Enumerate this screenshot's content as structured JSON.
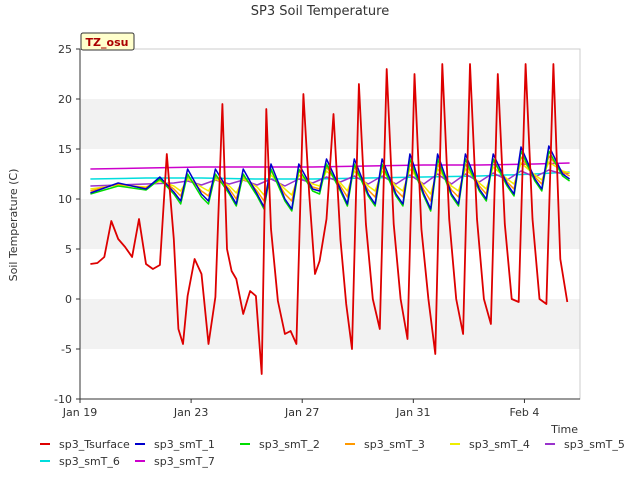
{
  "chart_data": {
    "type": "line",
    "title": "SP3 Soil Temperature",
    "xlabel": "Time",
    "ylabel": "Soil Temperature (C)",
    "site_label": "TZ_osu",
    "xlim": [
      "2020-01-19T00:00",
      "2020-02-06T00:00"
    ],
    "ylim": [
      -10,
      25
    ],
    "x_ticks": [
      {
        "label": "Jan 19",
        "date": "2020-01-19"
      },
      {
        "label": "Jan 23",
        "date": "2020-01-23"
      },
      {
        "label": "Jan 27",
        "date": "2020-01-27"
      },
      {
        "label": "Jan 31",
        "date": "2020-01-31"
      },
      {
        "label": "Feb 4",
        "date": "2020-02-04"
      }
    ],
    "y_ticks": [
      -10,
      -5,
      0,
      5,
      10,
      15,
      20,
      25
    ],
    "grid": "horizontal bands",
    "legend_position": "bottom",
    "series": [
      {
        "name": "sp3_Tsurface",
        "color": "#dd0000",
        "x": [
          "2020-01-19T09:00",
          "2020-01-19T15:00",
          "2020-01-19T21:00",
          "2020-01-20T03:00",
          "2020-01-20T09:00",
          "2020-01-20T15:00",
          "2020-01-20T21:00",
          "2020-01-21T03:00",
          "2020-01-21T09:00",
          "2020-01-21T15:00",
          "2020-01-21T21:00",
          "2020-01-22T03:00",
          "2020-01-22T09:00",
          "2020-01-22T13:00",
          "2020-01-22T17:00",
          "2020-01-22T21:00",
          "2020-01-23T03:00",
          "2020-01-23T09:00",
          "2020-01-23T15:00",
          "2020-01-23T21:00",
          "2020-01-24T03:00",
          "2020-01-24T07:00",
          "2020-01-24T11:00",
          "2020-01-24T15:00",
          "2020-01-24T21:00",
          "2020-01-25T03:00",
          "2020-01-25T08:00",
          "2020-01-25T13:00",
          "2020-01-25T17:00",
          "2020-01-25T21:00",
          "2020-01-26T03:00",
          "2020-01-26T09:00",
          "2020-01-26T14:00",
          "2020-01-26T19:00",
          "2020-01-27T01:00",
          "2020-01-27T06:00",
          "2020-01-27T11:00",
          "2020-01-27T15:00",
          "2020-01-27T21:00",
          "2020-01-28T03:00",
          "2020-01-28T09:00",
          "2020-01-28T14:00",
          "2020-01-28T19:00",
          "2020-01-29T01:00",
          "2020-01-29T07:00",
          "2020-01-29T13:00",
          "2020-01-29T19:00",
          "2020-01-30T01:00",
          "2020-01-30T07:00",
          "2020-01-30T13:00",
          "2020-01-30T19:00",
          "2020-01-31T01:00",
          "2020-01-31T07:00",
          "2020-01-31T13:00",
          "2020-01-31T19:00",
          "2020-02-01T01:00",
          "2020-02-01T07:00",
          "2020-02-01T13:00",
          "2020-02-01T19:00",
          "2020-02-02T01:00",
          "2020-02-02T07:00",
          "2020-02-02T13:00",
          "2020-02-02T19:00",
          "2020-02-03T01:00",
          "2020-02-03T07:00",
          "2020-02-03T13:00",
          "2020-02-03T19:00",
          "2020-02-04T01:00",
          "2020-02-04T07:00",
          "2020-02-04T13:00",
          "2020-02-04T19:00",
          "2020-02-05T01:00",
          "2020-02-05T07:00",
          "2020-02-05T13:00"
        ],
        "values": [
          3.5,
          3.6,
          4.2,
          7.8,
          6.0,
          5.2,
          4.2,
          8.0,
          3.5,
          3.0,
          3.4,
          14.5,
          6.0,
          -3.0,
          -4.5,
          0.3,
          4.0,
          2.5,
          -4.5,
          0.2,
          19.5,
          5.0,
          2.8,
          2.0,
          -1.5,
          0.8,
          0.3,
          -7.5,
          19.0,
          7.0,
          -0.2,
          -3.5,
          -3.2,
          -4.5,
          20.5,
          10.5,
          2.5,
          3.8,
          8.0,
          18.5,
          6.0,
          -0.5,
          -5.0,
          21.5,
          7.5,
          0.0,
          -3.0,
          23.0,
          7.5,
          0.0,
          -4.0,
          22.5,
          7.0,
          0.0,
          -5.5,
          23.5,
          8.0,
          0.0,
          -3.5,
          23.5,
          8.0,
          0.0,
          -2.5,
          22.5,
          7.5,
          0.0,
          -0.3,
          23.5,
          8.0,
          0.0,
          -0.5,
          23.5,
          4.0,
          -0.3
        ]
      },
      {
        "name": "sp3_smT_1",
        "color": "#0000cc",
        "x": [
          "2020-01-19T09:00",
          "2020-01-20T09:00",
          "2020-01-21T09:00",
          "2020-01-21T21:00",
          "2020-01-22T09:00",
          "2020-01-22T15:00",
          "2020-01-22T21:00",
          "2020-01-23T09:00",
          "2020-01-23T15:00",
          "2020-01-23T21:00",
          "2020-01-24T09:00",
          "2020-01-24T15:00",
          "2020-01-24T21:00",
          "2020-01-25T09:00",
          "2020-01-25T15:00",
          "2020-01-25T21:00",
          "2020-01-26T09:00",
          "2020-01-26T15:00",
          "2020-01-26T21:00",
          "2020-01-27T09:00",
          "2020-01-27T15:00",
          "2020-01-27T21:00",
          "2020-01-28T09:00",
          "2020-01-28T15:00",
          "2020-01-28T21:00",
          "2020-01-29T09:00",
          "2020-01-29T15:00",
          "2020-01-29T21:00",
          "2020-01-30T09:00",
          "2020-01-30T15:00",
          "2020-01-30T21:00",
          "2020-01-31T09:00",
          "2020-01-31T15:00",
          "2020-01-31T21:00",
          "2020-02-01T09:00",
          "2020-02-01T15:00",
          "2020-02-01T21:00",
          "2020-02-02T09:00",
          "2020-02-02T15:00",
          "2020-02-02T21:00",
          "2020-02-03T09:00",
          "2020-02-03T15:00",
          "2020-02-03T21:00",
          "2020-02-04T09:00",
          "2020-02-04T15:00",
          "2020-02-04T21:00",
          "2020-02-05T09:00",
          "2020-02-05T15:00"
        ],
        "values": [
          10.6,
          11.6,
          11.0,
          12.2,
          10.7,
          9.8,
          13.0,
          10.5,
          9.8,
          13.0,
          10.7,
          9.5,
          13.0,
          10.5,
          9.2,
          13.5,
          10.0,
          9.0,
          13.5,
          11.0,
          10.8,
          14.0,
          11.0,
          9.5,
          14.0,
          10.5,
          9.5,
          14.0,
          10.5,
          9.5,
          14.5,
          10.5,
          9.0,
          14.5,
          10.5,
          9.5,
          14.5,
          11.0,
          10.0,
          14.5,
          11.5,
          10.5,
          15.2,
          12.0,
          11.0,
          15.3,
          12.5,
          12.0
        ]
      },
      {
        "name": "sp3_smT_2",
        "color": "#00dd00",
        "x": [
          "2020-01-19T09:00",
          "2020-01-20T09:00",
          "2020-01-21T09:00",
          "2020-01-21T21:00",
          "2020-01-22T09:00",
          "2020-01-22T15:00",
          "2020-01-22T21:00",
          "2020-01-23T09:00",
          "2020-01-23T15:00",
          "2020-01-23T21:00",
          "2020-01-24T09:00",
          "2020-01-24T15:00",
          "2020-01-24T21:00",
          "2020-01-25T09:00",
          "2020-01-25T15:00",
          "2020-01-25T21:00",
          "2020-01-26T09:00",
          "2020-01-26T15:00",
          "2020-01-26T21:00",
          "2020-01-27T09:00",
          "2020-01-27T15:00",
          "2020-01-27T21:00",
          "2020-01-28T09:00",
          "2020-01-28T15:00",
          "2020-01-28T21:00",
          "2020-01-29T09:00",
          "2020-01-29T15:00",
          "2020-01-29T21:00",
          "2020-01-30T09:00",
          "2020-01-30T15:00",
          "2020-01-30T21:00",
          "2020-01-31T09:00",
          "2020-01-31T15:00",
          "2020-01-31T21:00",
          "2020-02-01T09:00",
          "2020-02-01T15:00",
          "2020-02-01T21:00",
          "2020-02-02T09:00",
          "2020-02-02T15:00",
          "2020-02-02T21:00",
          "2020-02-03T09:00",
          "2020-02-03T15:00",
          "2020-02-03T21:00",
          "2020-02-04T09:00",
          "2020-02-04T15:00",
          "2020-02-04T21:00",
          "2020-02-05T09:00",
          "2020-02-05T15:00"
        ],
        "values": [
          10.5,
          11.3,
          10.9,
          12.0,
          10.5,
          9.5,
          12.5,
          10.2,
          9.5,
          12.5,
          10.5,
          9.3,
          12.5,
          10.3,
          9.0,
          13.0,
          9.8,
          8.8,
          13.0,
          10.8,
          10.5,
          13.5,
          10.8,
          9.3,
          13.5,
          10.3,
          9.3,
          13.5,
          10.3,
          9.3,
          14.0,
          10.3,
          8.8,
          14.0,
          10.3,
          9.3,
          14.0,
          10.8,
          9.8,
          14.0,
          11.3,
          10.3,
          14.8,
          11.8,
          10.8,
          14.8,
          12.3,
          11.8
        ]
      },
      {
        "name": "sp3_smT_3",
        "color": "#ff9900",
        "x": [
          "2020-01-19T09:00",
          "2020-01-20T09:00",
          "2020-01-21T09:00",
          "2020-01-21T21:00",
          "2020-01-22T09:00",
          "2020-01-22T15:00",
          "2020-01-22T21:00",
          "2020-01-23T09:00",
          "2020-01-23T15:00",
          "2020-01-23T21:00",
          "2020-01-24T09:00",
          "2020-01-24T15:00",
          "2020-01-24T21:00",
          "2020-01-25T09:00",
          "2020-01-25T15:00",
          "2020-01-25T21:00",
          "2020-01-26T09:00",
          "2020-01-26T15:00",
          "2020-01-26T21:00",
          "2020-01-27T09:00",
          "2020-01-27T15:00",
          "2020-01-27T21:00",
          "2020-01-28T09:00",
          "2020-01-28T15:00",
          "2020-01-28T21:00",
          "2020-01-29T09:00",
          "2020-01-29T15:00",
          "2020-01-29T21:00",
          "2020-01-30T09:00",
          "2020-01-30T15:00",
          "2020-01-30T21:00",
          "2020-01-31T09:00",
          "2020-01-31T15:00",
          "2020-01-31T21:00",
          "2020-02-01T09:00",
          "2020-02-01T15:00",
          "2020-02-01T21:00",
          "2020-02-02T09:00",
          "2020-02-02T15:00",
          "2020-02-02T21:00",
          "2020-02-03T09:00",
          "2020-02-03T15:00",
          "2020-02-03T21:00",
          "2020-02-04T09:00",
          "2020-02-04T15:00",
          "2020-02-04T21:00",
          "2020-02-05T09:00",
          "2020-02-05T15:00"
        ],
        "values": [
          10.8,
          11.5,
          11.1,
          12.0,
          11.0,
          10.3,
          12.3,
          10.8,
          10.3,
          12.3,
          11.0,
          10.0,
          12.3,
          10.8,
          9.8,
          12.8,
          10.5,
          9.8,
          12.8,
          11.2,
          11.0,
          13.2,
          11.3,
          10.2,
          13.2,
          10.9,
          10.2,
          13.2,
          10.9,
          10.2,
          13.5,
          10.9,
          9.8,
          13.5,
          10.9,
          10.2,
          13.5,
          11.3,
          10.5,
          13.8,
          11.7,
          11.0,
          14.2,
          12.2,
          11.5,
          14.3,
          12.7,
          12.3
        ]
      },
      {
        "name": "sp3_smT_4",
        "color": "#eeee00",
        "x": [
          "2020-01-19T09:00",
          "2020-01-20T09:00",
          "2020-01-21T09:00",
          "2020-01-21T21:00",
          "2020-01-22T09:00",
          "2020-01-22T15:00",
          "2020-01-22T21:00",
          "2020-01-23T09:00",
          "2020-01-23T15:00",
          "2020-01-23T21:00",
          "2020-01-24T09:00",
          "2020-01-24T15:00",
          "2020-01-24T21:00",
          "2020-01-25T09:00",
          "2020-01-25T15:00",
          "2020-01-25T21:00",
          "2020-01-26T09:00",
          "2020-01-26T15:00",
          "2020-01-26T21:00",
          "2020-01-27T09:00",
          "2020-01-27T15:00",
          "2020-01-27T21:00",
          "2020-01-28T09:00",
          "2020-01-28T15:00",
          "2020-01-28T21:00",
          "2020-01-29T09:00",
          "2020-01-29T15:00",
          "2020-01-29T21:00",
          "2020-01-30T09:00",
          "2020-01-30T15:00",
          "2020-01-30T21:00",
          "2020-01-31T09:00",
          "2020-01-31T15:00",
          "2020-01-31T21:00",
          "2020-02-01T09:00",
          "2020-02-01T15:00",
          "2020-02-01T21:00",
          "2020-02-02T09:00",
          "2020-02-02T15:00",
          "2020-02-02T21:00",
          "2020-02-03T09:00",
          "2020-02-03T15:00",
          "2020-02-03T21:00",
          "2020-02-04T09:00",
          "2020-02-04T15:00",
          "2020-02-04T21:00",
          "2020-02-05T09:00",
          "2020-02-05T15:00"
        ],
        "values": [
          11.0,
          11.4,
          11.2,
          11.8,
          11.3,
          10.8,
          12.0,
          11.2,
          10.8,
          12.0,
          11.3,
          10.6,
          12.0,
          11.2,
          10.4,
          12.4,
          11.0,
          10.4,
          12.4,
          11.5,
          11.3,
          12.8,
          11.6,
          10.8,
          12.8,
          11.3,
          10.8,
          12.8,
          11.3,
          10.8,
          13.0,
          11.3,
          10.5,
          13.0,
          11.3,
          10.8,
          13.0,
          11.6,
          11.0,
          13.2,
          12.0,
          11.5,
          13.6,
          12.4,
          11.9,
          13.7,
          12.8,
          12.6
        ]
      },
      {
        "name": "sp3_smT_5",
        "color": "#9933cc",
        "x": [
          "2020-01-19T09:00",
          "2020-01-20T09:00",
          "2020-01-21T09:00",
          "2020-01-22T09:00",
          "2020-01-22T21:00",
          "2020-01-23T09:00",
          "2020-01-23T21:00",
          "2020-01-24T09:00",
          "2020-01-24T21:00",
          "2020-01-25T09:00",
          "2020-01-25T21:00",
          "2020-01-26T09:00",
          "2020-01-26T21:00",
          "2020-01-27T09:00",
          "2020-01-27T21:00",
          "2020-01-28T09:00",
          "2020-01-28T21:00",
          "2020-01-29T09:00",
          "2020-01-29T21:00",
          "2020-01-30T09:00",
          "2020-01-30T21:00",
          "2020-01-31T09:00",
          "2020-01-31T21:00",
          "2020-02-01T09:00",
          "2020-02-01T21:00",
          "2020-02-02T09:00",
          "2020-02-02T21:00",
          "2020-02-03T09:00",
          "2020-02-03T21:00",
          "2020-02-04T09:00",
          "2020-02-04T21:00",
          "2020-02-05T09:00",
          "2020-02-05T15:00"
        ],
        "values": [
          11.3,
          11.4,
          11.5,
          11.6,
          11.8,
          11.4,
          11.9,
          11.5,
          11.9,
          11.4,
          12.0,
          11.3,
          12.0,
          11.6,
          12.2,
          11.7,
          12.3,
          11.5,
          12.3,
          11.5,
          12.4,
          11.5,
          12.5,
          11.5,
          12.5,
          11.7,
          12.6,
          11.9,
          12.8,
          12.2,
          12.9,
          12.5,
          12.6
        ]
      },
      {
        "name": "sp3_smT_6",
        "color": "#00dddd",
        "x": [
          "2020-01-19T09:00",
          "2020-01-21T09:00",
          "2020-01-23T09:00",
          "2020-01-25T09:00",
          "2020-01-27T09:00",
          "2020-01-29T09:00",
          "2020-01-31T09:00",
          "2020-02-02T09:00",
          "2020-02-04T09:00",
          "2020-02-05T15:00"
        ],
        "values": [
          12.0,
          12.1,
          12.1,
          12.0,
          12.0,
          12.1,
          12.2,
          12.3,
          12.5,
          12.7
        ]
      },
      {
        "name": "sp3_smT_7",
        "color": "#cc00cc",
        "x": [
          "2020-01-19T09:00",
          "2020-01-21T09:00",
          "2020-01-23T09:00",
          "2020-01-25T09:00",
          "2020-01-27T09:00",
          "2020-01-29T09:00",
          "2020-01-31T09:00",
          "2020-02-02T09:00",
          "2020-02-04T09:00",
          "2020-02-05T15:00"
        ],
        "values": [
          13.0,
          13.1,
          13.2,
          13.2,
          13.2,
          13.3,
          13.4,
          13.4,
          13.5,
          13.6
        ]
      }
    ]
  }
}
